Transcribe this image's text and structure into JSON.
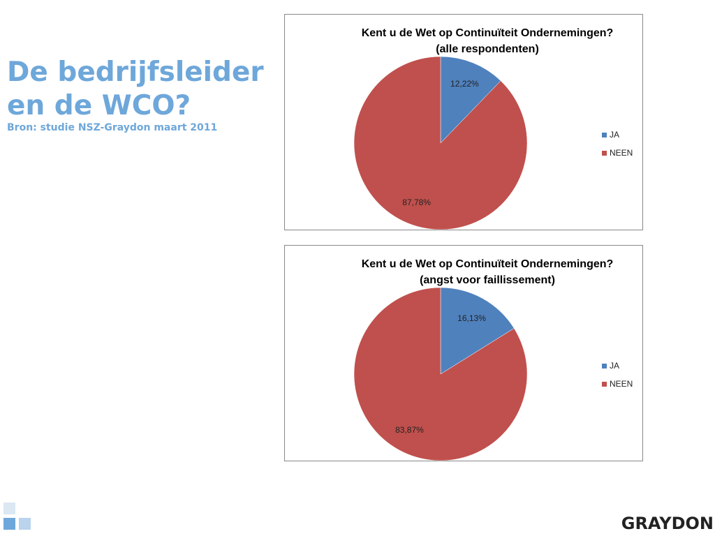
{
  "slide": {
    "title_lines": [
      "De bedrijfsleider",
      "en de WCO?"
    ],
    "source": "Bron: studie NSZ-Graydon maart 2011",
    "logo": "GRAYDON"
  },
  "chart_data": [
    {
      "type": "pie",
      "title": "Kent u de Wet op Continuïteit Ondernemingen?",
      "subtitle": "(alle respondenten)",
      "categories": [
        "JA",
        "NEEN"
      ],
      "values": [
        12.22,
        87.78
      ],
      "value_labels": [
        "12,22%",
        "87,78%"
      ],
      "colors": [
        "#4f81bd",
        "#c0504d"
      ],
      "legend": "right"
    },
    {
      "type": "pie",
      "title": "Kent u de Wet op Continuïteit Ondernemingen?",
      "subtitle": "(angst voor faillissement)",
      "categories": [
        "JA",
        "NEEN"
      ],
      "values": [
        16.13,
        83.87
      ],
      "value_labels": [
        "16,13%",
        "83,87%"
      ],
      "colors": [
        "#4f81bd",
        "#c0504d"
      ],
      "legend": "right"
    }
  ]
}
